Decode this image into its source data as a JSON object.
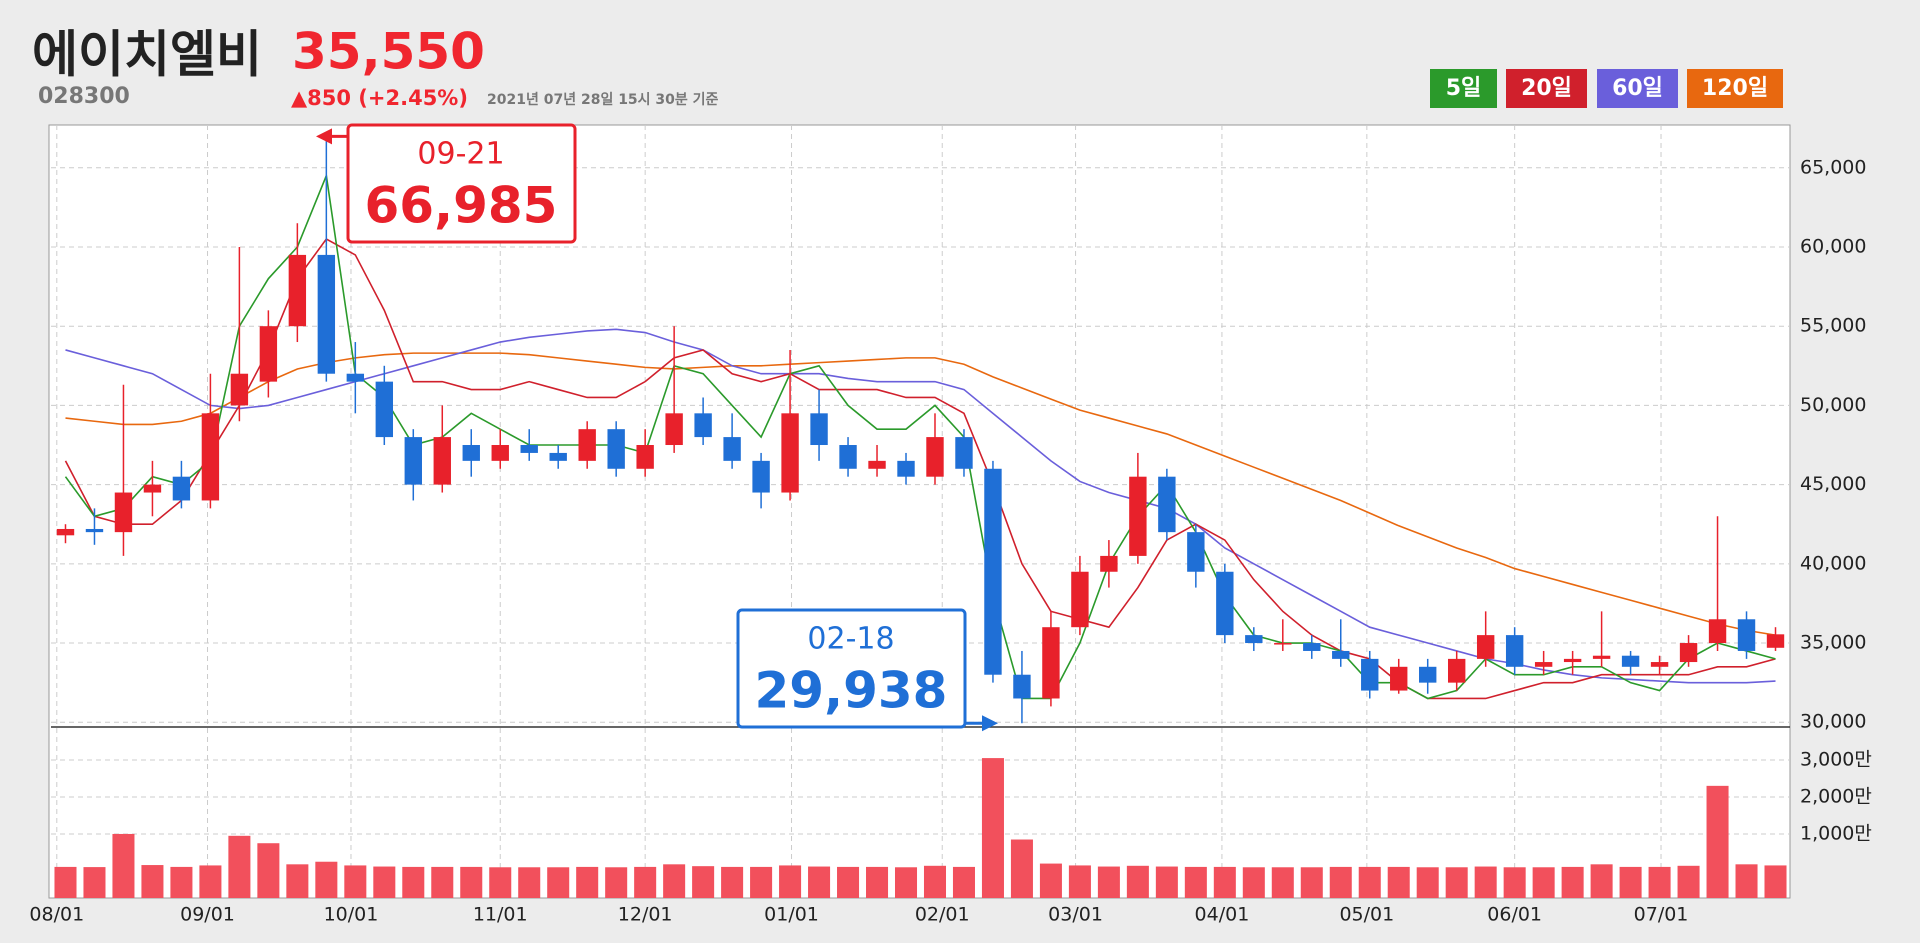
{
  "header": {
    "name": "에이치엘비",
    "code": "028300",
    "price": {
      "value": 35550,
      "label": "35,550"
    },
    "change": "▲850 (+2.45%)",
    "timestamp": "2021년 07년 28일 15시 30분 기준"
  },
  "chart_data": {
    "type": "candlestick",
    "legend": [
      {
        "name": "5일",
        "color": "#2b9a2b"
      },
      {
        "name": "20일",
        "color": "#d0202c"
      },
      {
        "name": "60일",
        "color": "#6a5fdb"
      },
      {
        "name": "120일",
        "color": "#e8680f"
      }
    ],
    "up_color": "#e8212b",
    "down_color": "#1f6fd6",
    "grid": true,
    "xlim": [
      0,
      60
    ],
    "xticks": [
      {
        "value": 0.2,
        "label": "08/01"
      },
      {
        "value": 5.4,
        "label": "09/01"
      },
      {
        "value": 10.35,
        "label": "10/01"
      },
      {
        "value": 15.5,
        "label": "11/01"
      },
      {
        "value": 20.5,
        "label": "12/01"
      },
      {
        "value": 25.55,
        "label": "01/01"
      },
      {
        "value": 30.75,
        "label": "02/01"
      },
      {
        "value": 35.35,
        "label": "03/01"
      },
      {
        "value": 40.4,
        "label": "04/01"
      },
      {
        "value": 45.4,
        "label": "05/01"
      },
      {
        "value": 50.5,
        "label": "06/01"
      },
      {
        "value": 55.55,
        "label": "07/01"
      }
    ],
    "ylim": [
      29700,
      67700
    ],
    "yticks": [
      {
        "value": 30000,
        "label": "30,000"
      },
      {
        "value": 35000,
        "label": "35,000"
      },
      {
        "value": 40000,
        "label": "40,000"
      },
      {
        "value": 45000,
        "label": "45,000"
      },
      {
        "value": 50000,
        "label": "50,000"
      },
      {
        "value": 55000,
        "label": "55,000"
      },
      {
        "value": 60000,
        "label": "60,000"
      },
      {
        "value": 65000,
        "label": "65,000"
      }
    ],
    "open": [
      41800,
      42200,
      42000,
      44500,
      45500,
      44000,
      50000,
      51500,
      55000,
      59500,
      52000,
      51500,
      48000,
      45000,
      47500,
      46500,
      47500,
      47000,
      46500,
      48500,
      46000,
      47500,
      49500,
      48000,
      46500,
      44500,
      49500,
      47500,
      46000,
      46500,
      45500,
      48000,
      46000,
      33000,
      31500,
      36000,
      39500,
      40500,
      45500,
      42000,
      39500,
      35500,
      35000,
      35000,
      34500,
      34000,
      32000,
      33500,
      32500,
      34000,
      35500,
      33500,
      33800,
      34000,
      34200,
      33500,
      33800,
      35000,
      36500,
      34700
    ],
    "high": [
      42500,
      43500,
      51300,
      46500,
      46500,
      52000,
      60000,
      56000,
      61500,
      66985,
      54000,
      52500,
      48500,
      50000,
      48500,
      48500,
      48500,
      47500,
      49000,
      49000,
      48500,
      55000,
      50500,
      49500,
      47000,
      53500,
      51000,
      48000,
      47500,
      47000,
      49500,
      48500,
      46500,
      34500,
      37000,
      40500,
      41500,
      47000,
      46000,
      42500,
      40000,
      36000,
      36500,
      35500,
      36500,
      34500,
      34000,
      34000,
      34500,
      37000,
      36000,
      34500,
      34500,
      37000,
      34500,
      34200,
      35500,
      43000,
      37000,
      36000
    ],
    "low": [
      41300,
      41200,
      40500,
      43000,
      43500,
      43500,
      49000,
      50500,
      54000,
      51500,
      49500,
      47500,
      44000,
      44500,
      45500,
      46000,
      46500,
      46000,
      46000,
      45500,
      45500,
      47000,
      47500,
      46000,
      43500,
      44000,
      46500,
      45500,
      45500,
      45000,
      45000,
      45500,
      32500,
      29938,
      31000,
      35500,
      38500,
      40000,
      41500,
      38500,
      35000,
      34500,
      34500,
      34000,
      33500,
      31500,
      31800,
      31800,
      32000,
      33500,
      33000,
      33000,
      33000,
      33500,
      33000,
      33000,
      33500,
      34500,
      34000,
      34500
    ],
    "close": [
      42200,
      42000,
      44500,
      45000,
      44000,
      49500,
      52000,
      55000,
      59500,
      52000,
      51500,
      48000,
      45000,
      48000,
      46500,
      47500,
      47000,
      46500,
      48500,
      46000,
      47500,
      49500,
      48000,
      46500,
      44500,
      49500,
      47500,
      46000,
      46500,
      45500,
      48000,
      46000,
      33000,
      31500,
      36000,
      39500,
      40500,
      45500,
      42000,
      39500,
      35500,
      35000,
      35000,
      34500,
      34000,
      32000,
      33500,
      32500,
      34000,
      35500,
      33500,
      33800,
      34000,
      34200,
      33500,
      33800,
      35000,
      36500,
      34500,
      35550
    ],
    "moving_averages": [
      {
        "color": "#e8680f",
        "values": [
          49200,
          49000,
          48800,
          48800,
          49000,
          49500,
          50500,
          51500,
          52300,
          52700,
          53000,
          53200,
          53300,
          53300,
          53300,
          53300,
          53200,
          53000,
          52800,
          52600,
          52400,
          52300,
          52400,
          52500,
          52500,
          52600,
          52700,
          52800,
          52900,
          53000,
          53000,
          52600,
          51800,
          51100,
          50400,
          49700,
          49200,
          48700,
          48200,
          47500,
          46800,
          46100,
          45400,
          44700,
          44000,
          43200,
          42400,
          41700,
          41000,
          40400,
          39700,
          39200,
          38700,
          38200,
          37700,
          37200,
          36700,
          36200,
          35800,
          35500
        ]
      },
      {
        "color": "#6a5fdb",
        "values": [
          53500,
          53000,
          52500,
          52000,
          51000,
          50000,
          49800,
          50000,
          50500,
          51000,
          51500,
          52000,
          52500,
          53000,
          53500,
          54000,
          54300,
          54500,
          54700,
          54800,
          54600,
          54000,
          53500,
          52500,
          52000,
          52000,
          52000,
          51700,
          51500,
          51500,
          51500,
          51000,
          49500,
          48000,
          46500,
          45200,
          44500,
          44000,
          43500,
          42500,
          41000,
          40000,
          39000,
          38000,
          37000,
          36000,
          35500,
          35000,
          34500,
          34000,
          33700,
          33300,
          33000,
          32800,
          32700,
          32600,
          32500,
          32500,
          32500,
          32600
        ]
      },
      {
        "color": "#d0202c",
        "values": [
          46500,
          43000,
          42500,
          42500,
          44000,
          47000,
          50000,
          53500,
          58000,
          60500,
          59500,
          56000,
          51500,
          51500,
          51000,
          51000,
          51500,
          51000,
          50500,
          50500,
          51500,
          53000,
          53500,
          52000,
          51500,
          52000,
          51000,
          51000,
          51000,
          50500,
          50500,
          49500,
          45000,
          40000,
          37000,
          36500,
          36000,
          38500,
          41500,
          42500,
          41500,
          39000,
          37000,
          35500,
          34500,
          34000,
          32500,
          31500,
          31500,
          31500,
          32000,
          32500,
          32500,
          33000,
          33000,
          33000,
          33000,
          33500,
          33500,
          34000
        ]
      },
      {
        "color": "#2b9a2b",
        "values": [
          45500,
          43000,
          43500,
          45500,
          45000,
          46500,
          55000,
          58000,
          60000,
          64500,
          52000,
          50500,
          47500,
          48000,
          49500,
          48500,
          47500,
          47500,
          47500,
          47500,
          47000,
          52500,
          52000,
          50000,
          48000,
          52000,
          52500,
          50000,
          48500,
          48500,
          50000,
          48000,
          38000,
          31500,
          31500,
          35000,
          40000,
          43000,
          45000,
          42000,
          38000,
          35500,
          35000,
          35000,
          34500,
          32500,
          32500,
          31500,
          32000,
          34000,
          33000,
          33000,
          33500,
          33500,
          32500,
          32000,
          34000,
          35000,
          34500,
          34000
        ]
      }
    ],
    "volume": {
      "color": "#f2505c",
      "ylim": [
        -730,
        3890
      ],
      "yticks": [
        {
          "value": 1000,
          "label": "1,000만"
        },
        {
          "value": 2000,
          "label": "2,000만"
        },
        {
          "value": 3000,
          "label": "3,000만"
        }
      ],
      "values": [
        110,
        105,
        1000,
        160,
        110,
        150,
        950,
        750,
        180,
        250,
        150,
        120,
        110,
        110,
        110,
        100,
        100,
        100,
        110,
        100,
        110,
        180,
        130,
        110,
        110,
        150,
        120,
        110,
        110,
        100,
        140,
        110,
        3050,
        850,
        200,
        150,
        120,
        140,
        120,
        110,
        110,
        100,
        100,
        100,
        110,
        110,
        110,
        100,
        100,
        120,
        100,
        100,
        110,
        180,
        110,
        110,
        140,
        2300,
        180,
        150
      ]
    },
    "annotations": [
      {
        "date": "09-21",
        "value": {
          "value": 66985,
          "label": "66,985"
        },
        "color": "#e8212b"
      },
      {
        "date": "02-18",
        "value": {
          "value": 29938,
          "label": "29,938"
        },
        "color": "#1f6fd6"
      }
    ]
  }
}
